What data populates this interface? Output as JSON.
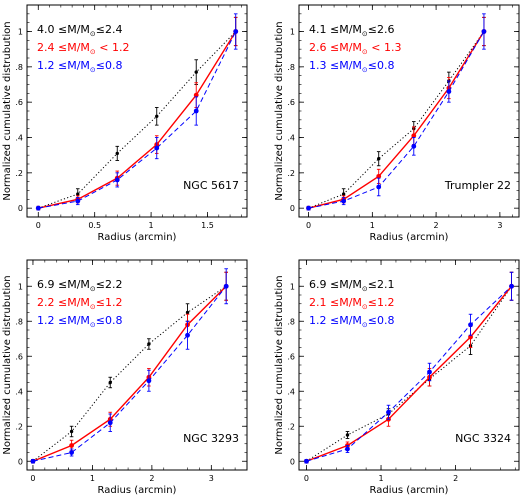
{
  "colors": {
    "black": "#000000",
    "red": "#ff0000",
    "blue": "#0000ff"
  },
  "chart_data": [
    {
      "type": "line",
      "title": "NGC 5617",
      "xlabel": "Radius (arcmin)",
      "ylabel": "Normalized cumulative distrubution",
      "xlim": [
        -0.1,
        1.85
      ],
      "ylim": [
        -0.05,
        1.15
      ],
      "xticks": [
        0,
        0.5,
        1,
        1.5
      ],
      "xticklabels": [
        "0",
        "0.5",
        "1",
        "1.5"
      ],
      "yticks": [
        0,
        0.2,
        0.4,
        0.6,
        0.8,
        1
      ],
      "yticklabels": [
        "0",
        ".2",
        ".4",
        ".6",
        ".8",
        "1"
      ],
      "legend": [
        {
          "lo": "4.0",
          "rel": "≤",
          "hi": "2.4"
        },
        {
          "lo": "2.4",
          "rel": "<",
          "hi": "1.2"
        },
        {
          "lo": "1.2",
          "rel": "≤",
          "hi": "0.8"
        }
      ],
      "series": [
        {
          "color": "black",
          "dash": "dot",
          "x": [
            0,
            0.35,
            0.7,
            1.05,
            1.4,
            1.75
          ],
          "y": [
            0,
            0.08,
            0.31,
            0.52,
            0.77,
            1.0
          ],
          "err": [
            0.01,
            0.03,
            0.04,
            0.05,
            0.07,
            0.08
          ]
        },
        {
          "color": "red",
          "dash": "solid",
          "x": [
            0,
            0.35,
            0.7,
            1.05,
            1.4,
            1.75
          ],
          "y": [
            0,
            0.05,
            0.17,
            0.36,
            0.64,
            1.0
          ],
          "err": [
            0.01,
            0.02,
            0.04,
            0.05,
            0.07,
            0.08
          ]
        },
        {
          "color": "blue",
          "dash": "dash",
          "x": [
            0,
            0.35,
            0.7,
            1.05,
            1.4,
            1.75
          ],
          "y": [
            0,
            0.04,
            0.16,
            0.34,
            0.55,
            1.0
          ],
          "err": [
            0.01,
            0.02,
            0.04,
            0.06,
            0.08,
            0.1
          ]
        }
      ]
    },
    {
      "type": "line",
      "title": "Trumpler 22",
      "xlabel": "Radius (arcmin)",
      "ylabel": "Normalized cumulative distrubution",
      "xlim": [
        -0.15,
        3.3
      ],
      "ylim": [
        -0.05,
        1.15
      ],
      "xticks": [
        0,
        1,
        2,
        3
      ],
      "xticklabels": [
        "0",
        "1",
        "2",
        "3"
      ],
      "yticks": [
        0,
        0.2,
        0.4,
        0.6,
        0.8,
        1
      ],
      "yticklabels": [
        "0",
        ".2",
        ".4",
        ".6",
        ".8",
        "1"
      ],
      "legend": [
        {
          "lo": "4.1",
          "rel": "≤",
          "hi": "2.6"
        },
        {
          "lo": "2.6",
          "rel": "<",
          "hi": "1.3"
        },
        {
          "lo": "1.3",
          "rel": "≤",
          "hi": "0.8"
        }
      ],
      "series": [
        {
          "color": "black",
          "dash": "dot",
          "x": [
            0,
            0.55,
            1.1,
            1.65,
            2.2,
            2.75
          ],
          "y": [
            0,
            0.08,
            0.28,
            0.45,
            0.72,
            1.0
          ],
          "err": [
            0.01,
            0.03,
            0.04,
            0.04,
            0.05,
            0.08
          ]
        },
        {
          "color": "red",
          "dash": "solid",
          "x": [
            0,
            0.55,
            1.1,
            1.65,
            2.2,
            2.75
          ],
          "y": [
            0,
            0.05,
            0.18,
            0.41,
            0.68,
            1.0
          ],
          "err": [
            0.01,
            0.02,
            0.04,
            0.05,
            0.06,
            0.08
          ]
        },
        {
          "color": "blue",
          "dash": "dash",
          "x": [
            0,
            0.55,
            1.1,
            1.65,
            2.2,
            2.75
          ],
          "y": [
            0,
            0.04,
            0.12,
            0.35,
            0.66,
            1.0
          ],
          "err": [
            0.01,
            0.02,
            0.05,
            0.05,
            0.06,
            0.1
          ]
        }
      ]
    },
    {
      "type": "line",
      "title": "NGC 3293",
      "xlabel": "Radius (arcmin)",
      "ylabel": "Normalized cumulative distrubution",
      "xlim": [
        -0.1,
        3.6
      ],
      "ylim": [
        -0.05,
        1.15
      ],
      "xticks": [
        0,
        1,
        2,
        3
      ],
      "xticklabels": [
        "0",
        "1",
        "2",
        "3"
      ],
      "yticks": [
        0,
        0.2,
        0.4,
        0.6,
        0.8,
        1
      ],
      "yticklabels": [
        "0",
        ".2",
        ".4",
        ".6",
        ".8",
        "1"
      ],
      "legend": [
        {
          "lo": "6.9",
          "rel": "≤",
          "hi": "2.2"
        },
        {
          "lo": "2.2",
          "rel": "≤",
          "hi": "1.2"
        },
        {
          "lo": "1.2",
          "rel": "≤",
          "hi": "0.8"
        }
      ],
      "series": [
        {
          "color": "black",
          "dash": "dot",
          "x": [
            0,
            0.65,
            1.3,
            1.95,
            2.6,
            3.25
          ],
          "y": [
            0,
            0.17,
            0.45,
            0.67,
            0.85,
            1.0
          ],
          "err": [
            0.01,
            0.03,
            0.03,
            0.03,
            0.05,
            0.08
          ]
        },
        {
          "color": "red",
          "dash": "solid",
          "x": [
            0,
            0.65,
            1.3,
            1.95,
            2.6,
            3.25
          ],
          "y": [
            0,
            0.09,
            0.24,
            0.48,
            0.78,
            1.0
          ],
          "err": [
            0.01,
            0.03,
            0.04,
            0.05,
            0.06,
            0.08
          ]
        },
        {
          "color": "blue",
          "dash": "dash",
          "x": [
            0,
            0.65,
            1.3,
            1.95,
            2.6,
            3.25
          ],
          "y": [
            0,
            0.05,
            0.22,
            0.46,
            0.72,
            1.0
          ],
          "err": [
            0.01,
            0.02,
            0.05,
            0.06,
            0.08,
            0.1
          ]
        }
      ]
    },
    {
      "type": "line",
      "title": "NGC 3324",
      "xlabel": "Radius (arcmin)",
      "ylabel": "Normalized cumulative distrubution",
      "xlim": [
        -0.1,
        2.85
      ],
      "ylim": [
        -0.05,
        1.15
      ],
      "xticks": [
        0,
        1,
        2
      ],
      "xticklabels": [
        "0",
        "1",
        "2"
      ],
      "yticks": [
        0,
        0.2,
        0.4,
        0.6,
        0.8,
        1
      ],
      "yticklabels": [
        "0",
        ".2",
        ".4",
        ".6",
        ".8",
        "1"
      ],
      "legend": [
        {
          "lo": "6.9",
          "rel": "≤",
          "hi": "2.1"
        },
        {
          "lo": "2.1",
          "rel": "≤",
          "hi": "1.2"
        },
        {
          "lo": "1.2",
          "rel": "≤",
          "hi": "0.8"
        }
      ],
      "series": [
        {
          "color": "black",
          "dash": "dot",
          "x": [
            0,
            0.55,
            1.1,
            1.65,
            2.2,
            2.75
          ],
          "y": [
            0,
            0.15,
            0.27,
            0.47,
            0.66,
            1.0
          ],
          "err": [
            0.01,
            0.02,
            0.03,
            0.04,
            0.05,
            0.08
          ]
        },
        {
          "color": "red",
          "dash": "solid",
          "x": [
            0,
            0.55,
            1.1,
            1.65,
            2.2,
            2.75
          ],
          "y": [
            0,
            0.09,
            0.24,
            0.48,
            0.71,
            1.0
          ],
          "err": [
            0.01,
            0.02,
            0.04,
            0.05,
            0.06,
            0.08
          ]
        },
        {
          "color": "blue",
          "dash": "dash",
          "x": [
            0,
            0.55,
            1.1,
            1.65,
            2.2,
            2.75
          ],
          "y": [
            0,
            0.07,
            0.28,
            0.51,
            0.78,
            1.0
          ],
          "err": [
            0.01,
            0.02,
            0.04,
            0.05,
            0.06,
            0.08
          ]
        }
      ]
    }
  ]
}
